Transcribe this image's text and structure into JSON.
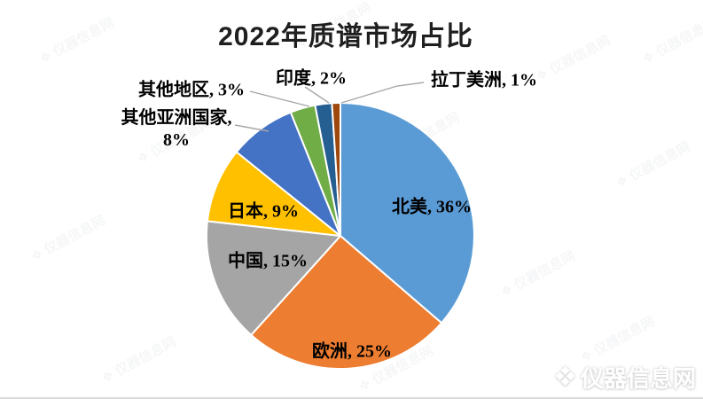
{
  "title": "2022年质谱市场占比",
  "chart_data": {
    "type": "pie",
    "title": "2022年质谱市场占比",
    "categories": [
      "北美",
      "欧洲",
      "中国",
      "日本",
      "其他亚洲国家",
      "其他地区",
      "印度",
      "拉丁美洲"
    ],
    "values": [
      36,
      25,
      15,
      9,
      8,
      3,
      2,
      1
    ],
    "unit": "%",
    "colors": [
      "#5B9BD5",
      "#ED7D31",
      "#A5A5A5",
      "#FFC000",
      "#4472C4",
      "#70AD47",
      "#255E91",
      "#9E480E"
    ],
    "keys": [
      "north-america",
      "europe",
      "china",
      "japan",
      "other-asian-countries",
      "other-regions",
      "india",
      "latin-america"
    ],
    "start_angle_deg": 0,
    "direction": "clockwise",
    "legend": "none",
    "data_labels": "name, value%",
    "leader_line_color": "#a6a6a6",
    "slice_border_color": "#ffffff"
  },
  "labels": {
    "north_america": "北美, 36%",
    "europe": "欧洲, 25%",
    "china": "中国, 15%",
    "japan": "日本, 9%",
    "other_asia_line1": "其他亚洲国家,",
    "other_asia_line2": "8%",
    "other_regions": "其他地区, 3%",
    "india": "印度, 2%",
    "latin_america": "拉丁美洲, 1%"
  },
  "watermark": {
    "text": "仪器信息网",
    "logo_glyph": "❖"
  }
}
